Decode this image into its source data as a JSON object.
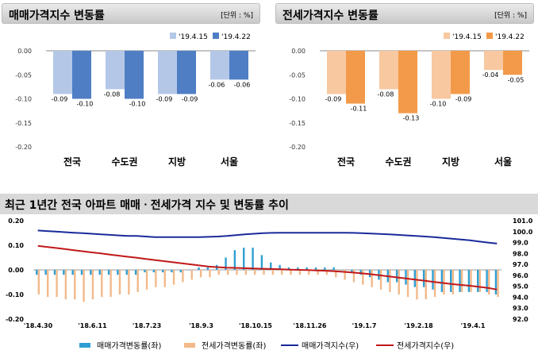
{
  "chart_data": [
    {
      "type": "bar",
      "title": "매매가격지수 변동률",
      "unit": "[단위 : %]",
      "categories": [
        "전국",
        "수도권",
        "지방",
        "서울"
      ],
      "series": [
        {
          "name": "'19.4.15",
          "values": [
            -0.09,
            -0.08,
            -0.09,
            -0.06
          ],
          "color": "#b4c7e7"
        },
        {
          "name": "'19.4.22",
          "values": [
            -0.1,
            -0.1,
            -0.09,
            -0.06
          ],
          "color": "#4f7ec5"
        }
      ],
      "ylim": [
        -0.2,
        0.0
      ],
      "yticks": [
        "0.00",
        "-0.05",
        "-0.10",
        "-0.15",
        "-0.20"
      ],
      "value_labels": [
        [
          "-0.09",
          "-0.08",
          "-0.09",
          "-0.06"
        ],
        [
          "-0.10",
          "-0.10",
          "-0.09",
          "-0.06"
        ]
      ],
      "legend": "top-right"
    },
    {
      "type": "bar",
      "title": "전세가격지수 변동률",
      "unit": "[단위 : %]",
      "categories": [
        "전국",
        "수도권",
        "지방",
        "서울"
      ],
      "series": [
        {
          "name": "'19.4.15",
          "values": [
            -0.09,
            -0.08,
            -0.1,
            -0.04
          ],
          "color": "#f8c8a0"
        },
        {
          "name": "'19.4.22",
          "values": [
            -0.11,
            -0.13,
            -0.09,
            -0.05
          ],
          "color": "#f39a4a"
        }
      ],
      "ylim": [
        -0.2,
        0.0
      ],
      "yticks": [
        "0.00",
        "-0.05",
        "-0.10",
        "-0.15",
        "-0.20"
      ],
      "value_labels": [
        [
          "-0.09",
          "-0.08",
          "-0.10",
          "-0.04"
        ],
        [
          "-0.11",
          "-0.13",
          "-0.09",
          "-0.05"
        ]
      ],
      "legend": "top-right"
    },
    {
      "type": "bar+line",
      "title": "최근 1년간 전국 아파트 매매ㆍ전세가격 지수 및 변동률 추이",
      "x_ticks": [
        "'18.4.30",
        "'18.6.11",
        "'18.7.23",
        "'18.9.3",
        "'18.10.15",
        "'18.11.26",
        "'19.1.7",
        "'19.2.18",
        "'19.4.1"
      ],
      "left_ylim": [
        -0.2,
        0.2
      ],
      "left_yticks": [
        "0.20",
        "0.10",
        "0.00",
        "-0.10",
        "-0.20"
      ],
      "right_ylim": [
        92.0,
        101.0
      ],
      "right_yticks": [
        "101.0",
        "100.0",
        "99.0",
        "98.0",
        "97.0",
        "96.0",
        "95.0",
        "94.0",
        "93.0",
        "92.0"
      ],
      "weeks": 52,
      "bars": [
        {
          "name": "매매가격변동률(좌)",
          "color": "#2e9fd4",
          "values": [
            -0.02,
            -0.02,
            -0.02,
            -0.02,
            -0.02,
            -0.02,
            -0.02,
            -0.02,
            -0.02,
            -0.02,
            -0.02,
            -0.02,
            -0.01,
            -0.01,
            -0.01,
            -0.01,
            -0.01,
            0.0,
            0.01,
            0.01,
            0.02,
            0.05,
            0.08,
            0.09,
            0.09,
            0.06,
            0.03,
            0.02,
            0.01,
            0.01,
            0.01,
            0.01,
            0.01,
            0.01,
            0.0,
            -0.01,
            -0.02,
            -0.03,
            -0.04,
            -0.05,
            -0.05,
            -0.06,
            -0.07,
            -0.07,
            -0.08,
            -0.09,
            -0.09,
            -0.09,
            -0.09,
            -0.09,
            -0.09,
            -0.1
          ]
        },
        {
          "name": "전세가격변동률(좌)",
          "color": "#f2b98a",
          "values": [
            -0.1,
            -0.11,
            -0.11,
            -0.12,
            -0.12,
            -0.13,
            -0.12,
            -0.11,
            -0.11,
            -0.1,
            -0.1,
            -0.09,
            -0.08,
            -0.07,
            -0.07,
            -0.06,
            -0.05,
            -0.04,
            -0.03,
            -0.03,
            -0.02,
            -0.02,
            -0.02,
            -0.02,
            -0.02,
            -0.02,
            -0.02,
            -0.02,
            -0.02,
            -0.02,
            -0.02,
            -0.02,
            -0.02,
            -0.03,
            -0.04,
            -0.05,
            -0.06,
            -0.07,
            -0.08,
            -0.09,
            -0.1,
            -0.11,
            -0.12,
            -0.12,
            -0.11,
            -0.1,
            -0.1,
            -0.09,
            -0.09,
            -0.09,
            -0.1,
            -0.11
          ]
        }
      ],
      "lines": [
        {
          "name": "매매가격지수(우)",
          "color": "#1a2a9a",
          "axis": "right",
          "values": [
            100.1,
            100.05,
            100.0,
            99.95,
            99.9,
            99.85,
            99.8,
            99.75,
            99.7,
            99.65,
            99.6,
            99.6,
            99.55,
            99.5,
            99.5,
            99.5,
            99.5,
            99.5,
            99.5,
            99.52,
            99.55,
            99.6,
            99.68,
            99.75,
            99.8,
            99.85,
            99.88,
            99.9,
            99.9,
            99.9,
            99.9,
            99.9,
            99.9,
            99.9,
            99.9,
            99.88,
            99.85,
            99.82,
            99.78,
            99.75,
            99.7,
            99.65,
            99.6,
            99.55,
            99.5,
            99.42,
            99.35,
            99.27,
            99.2,
            99.1,
            99.0,
            98.9
          ]
        },
        {
          "name": "전세가격지수(우)",
          "color": "#c0181a",
          "axis": "right",
          "values": [
            98.7,
            98.6,
            98.5,
            98.4,
            98.3,
            98.2,
            98.1,
            98.0,
            97.9,
            97.8,
            97.7,
            97.6,
            97.5,
            97.4,
            97.3,
            97.2,
            97.1,
            97.0,
            96.9,
            96.8,
            96.75,
            96.7,
            96.68,
            96.65,
            96.62,
            96.6,
            96.58,
            96.55,
            96.52,
            96.5,
            96.48,
            96.45,
            96.42,
            96.38,
            96.32,
            96.25,
            96.18,
            96.1,
            96.0,
            95.9,
            95.8,
            95.7,
            95.6,
            95.5,
            95.4,
            95.3,
            95.2,
            95.12,
            95.05,
            94.95,
            94.85,
            94.7
          ]
        }
      ],
      "legend": "bottom"
    }
  ]
}
